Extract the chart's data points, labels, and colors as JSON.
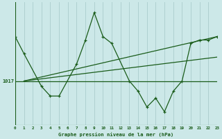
{
  "background_color": "#cce8e8",
  "grid_color": "#aacccc",
  "line_color": "#1a5c1a",
  "title": "Graphe pression niveau de la mer (hPa)",
  "y_horizontal_line": 1017,
  "xlim": [
    0,
    23
  ],
  "ylim": [
    1010.5,
    1028.5
  ],
  "ytick_value": 1017,
  "series1": {
    "x": [
      0,
      1,
      3,
      4,
      5,
      7,
      8,
      9,
      10,
      11,
      13,
      14,
      15,
      16,
      17,
      18,
      19,
      20,
      21,
      22,
      23
    ],
    "y": [
      1023.5,
      1021.0,
      1016.2,
      1014.8,
      1014.8,
      1019.5,
      1023.0,
      1027.0,
      1023.5,
      1022.5,
      1017.0,
      1015.5,
      1013.2,
      1014.5,
      1012.5,
      1015.5,
      1017.0,
      1022.5,
      1023.0,
      1023.0,
      1023.5
    ]
  },
  "series2_trend": {
    "x": [
      1,
      23
    ],
    "y": [
      1017.0,
      1023.5
    ]
  },
  "series3_trend": {
    "x": [
      1,
      23
    ],
    "y": [
      1017.0,
      1020.5
    ]
  },
  "series4_flat": {
    "x": [
      0,
      23
    ],
    "y": [
      1017.0,
      1017.0
    ]
  }
}
